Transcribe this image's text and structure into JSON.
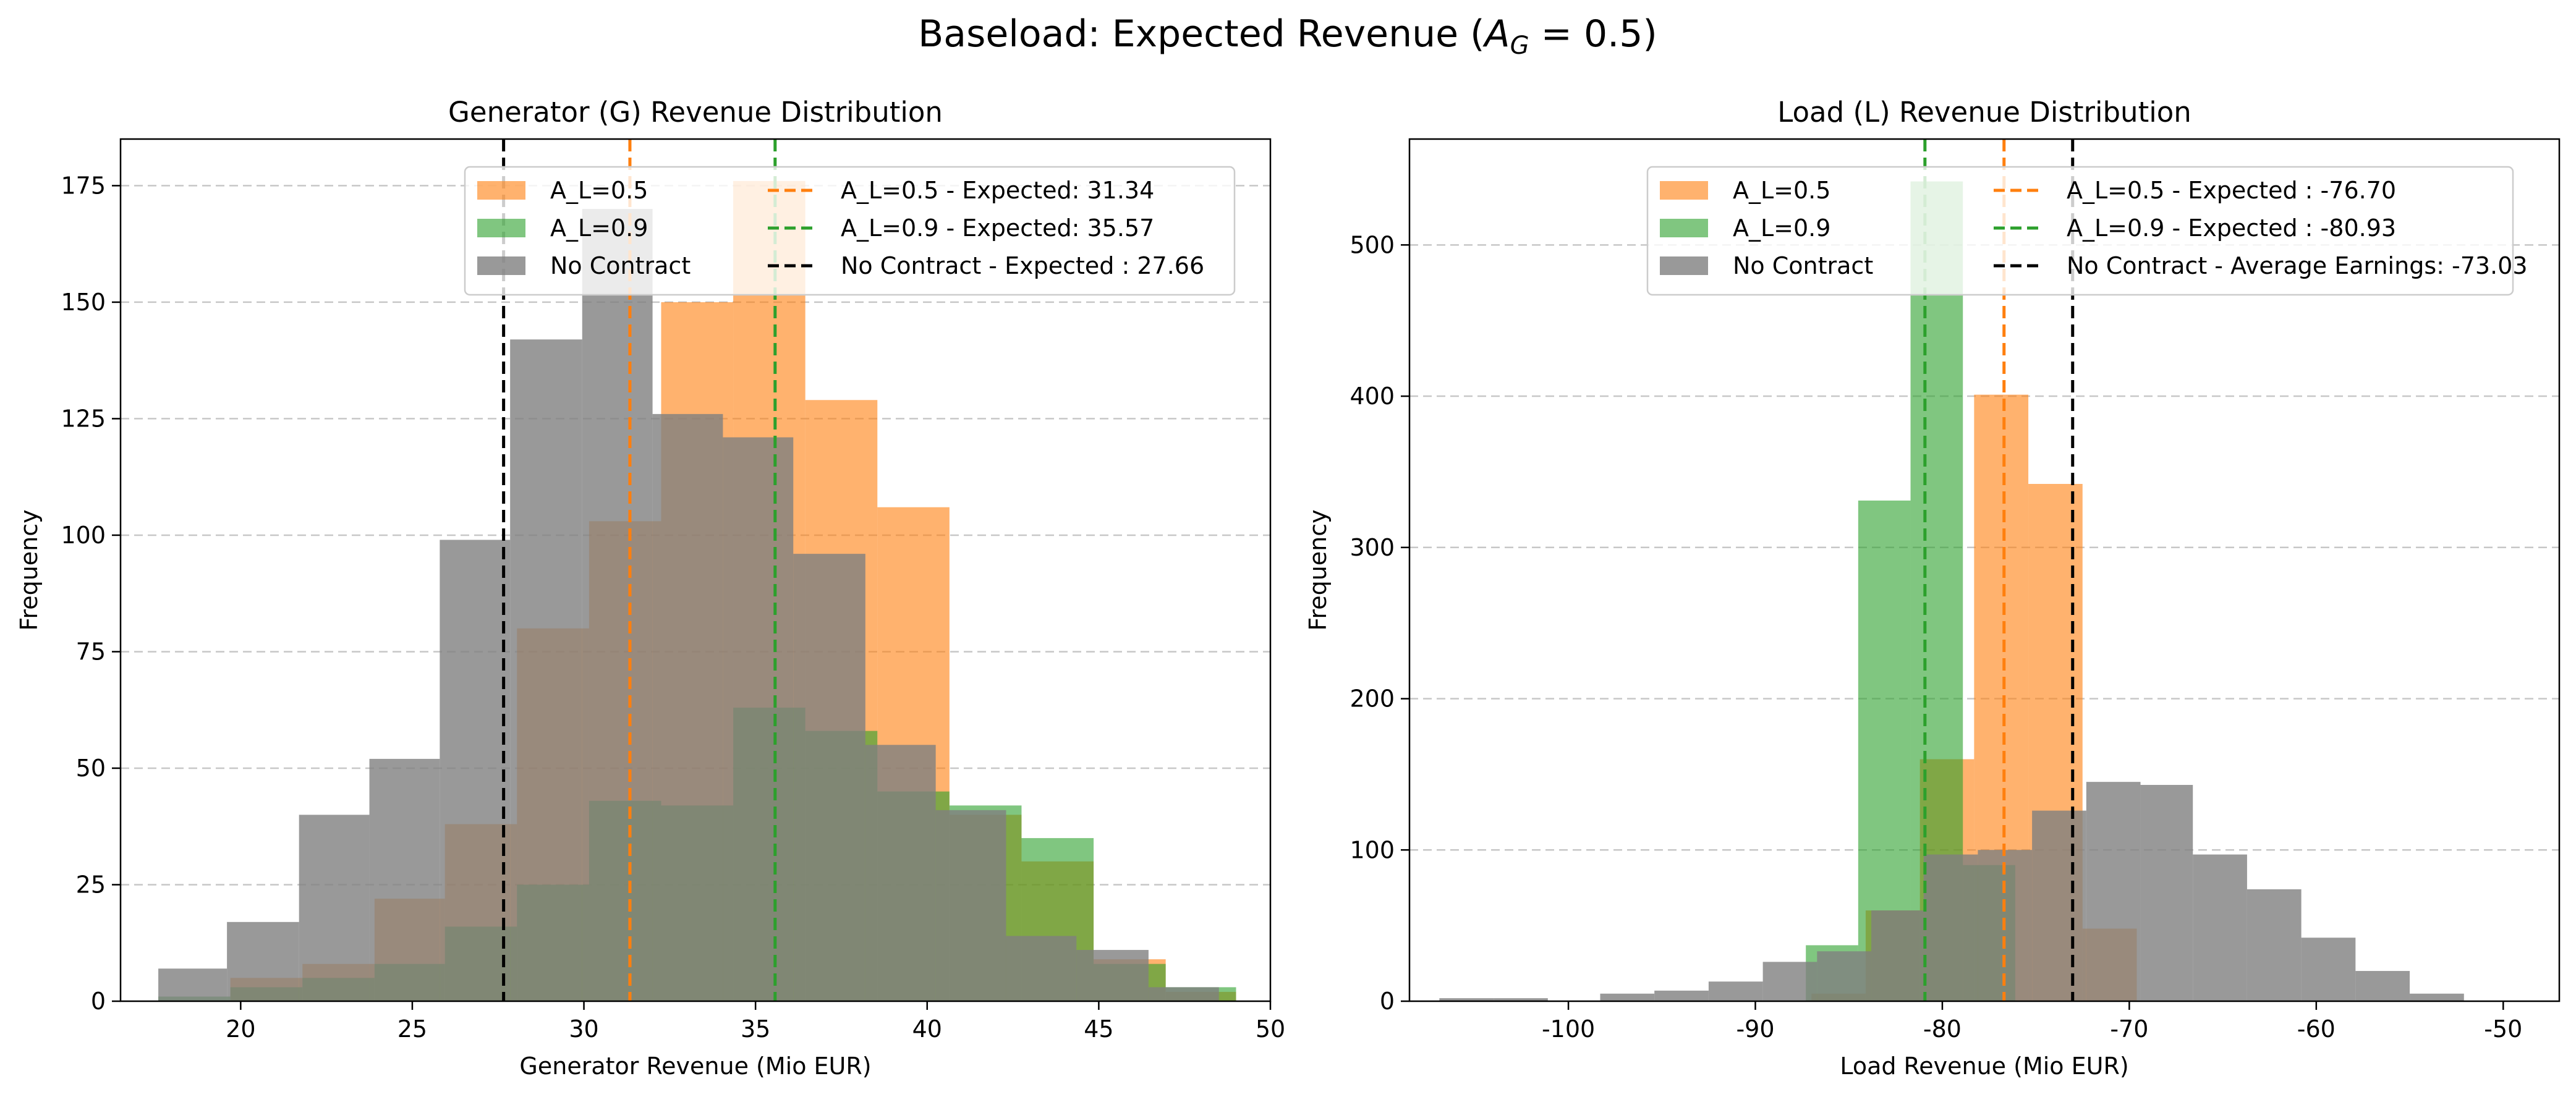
{
  "figure": {
    "title_prefix": "Baseload: Expected Revenue (",
    "title_var": "A",
    "title_sub": "G",
    "title_suffix": " = 0.5)"
  },
  "chart_data": [
    {
      "type": "histogram",
      "title": "Generator (G) Revenue Distribution",
      "xlabel": "Generator Revenue (Mio EUR)",
      "ylabel": "Frequency",
      "xlim": [
        16.5,
        50
      ],
      "ylim": [
        0,
        185
      ],
      "xticks": [
        20,
        25,
        30,
        35,
        40,
        45,
        50
      ],
      "yticks": [
        0,
        25,
        50,
        75,
        100,
        125,
        150,
        175
      ],
      "grid": "y-dashed",
      "legend_position": "top-right",
      "legend_columns": 2,
      "series": [
        {
          "name": "A_L=0.5",
          "color": "#ff7f0e",
          "opacity": 0.6,
          "bins": [
            [
              17.6,
              19.7,
              0
            ],
            [
              19.7,
              21.8,
              5
            ],
            [
              21.8,
              23.9,
              8
            ],
            [
              23.9,
              25.95,
              22
            ],
            [
              25.95,
              28.05,
              38
            ],
            [
              28.05,
              30.15,
              80
            ],
            [
              30.15,
              32.25,
              103
            ],
            [
              32.25,
              34.35,
              150
            ],
            [
              34.35,
              36.45,
              176
            ],
            [
              36.45,
              38.55,
              129
            ],
            [
              38.55,
              40.65,
              106
            ],
            [
              40.65,
              42.75,
              40
            ],
            [
              42.75,
              44.85,
              30
            ],
            [
              44.85,
              46.95,
              9
            ],
            [
              46.95,
              49.0,
              2
            ]
          ]
        },
        {
          "name": "A_L=0.9",
          "color": "#2ca02c",
          "opacity": 0.6,
          "bins": [
            [
              17.6,
              19.7,
              1
            ],
            [
              19.7,
              21.8,
              3
            ],
            [
              21.8,
              23.9,
              5
            ],
            [
              23.9,
              25.95,
              8
            ],
            [
              25.95,
              28.05,
              16
            ],
            [
              28.05,
              30.15,
              25
            ],
            [
              30.15,
              32.25,
              43
            ],
            [
              32.25,
              34.35,
              42
            ],
            [
              34.35,
              36.45,
              63
            ],
            [
              36.45,
              38.55,
              58
            ],
            [
              38.55,
              40.65,
              45
            ],
            [
              40.65,
              42.75,
              42
            ],
            [
              42.75,
              44.85,
              35
            ],
            [
              44.85,
              46.95,
              8
            ],
            [
              46.95,
              49.0,
              3
            ]
          ]
        },
        {
          "name": "No Contract",
          "color": "#808080",
          "opacity": 0.8,
          "bins": [
            [
              17.6,
              19.6,
              7
            ],
            [
              19.6,
              21.7,
              17
            ],
            [
              21.7,
              23.75,
              40
            ],
            [
              23.75,
              25.8,
              52
            ],
            [
              25.8,
              27.85,
              99
            ],
            [
              27.85,
              29.95,
              142
            ],
            [
              29.95,
              32.0,
              170
            ],
            [
              32.0,
              34.05,
              126
            ],
            [
              34.05,
              36.1,
              121
            ],
            [
              36.1,
              38.2,
              96
            ],
            [
              38.2,
              40.25,
              55
            ],
            [
              40.25,
              42.3,
              41
            ],
            [
              42.3,
              44.35,
              14
            ],
            [
              44.35,
              46.45,
              11
            ],
            [
              46.45,
              48.5,
              3
            ]
          ]
        }
      ],
      "expected_lines": [
        {
          "label": "A_L=0.5 - Expected: 31.34",
          "x": 31.34,
          "color": "#ff7f0e"
        },
        {
          "label": "A_L=0.9 - Expected: 35.57",
          "x": 35.57,
          "color": "#2ca02c"
        },
        {
          "label": "No Contract - Expected : 27.66",
          "x": 27.66,
          "color": "#000000"
        }
      ]
    },
    {
      "type": "histogram",
      "title": "Load (L) Revenue Distribution",
      "xlabel": "Load Revenue (Mio EUR)",
      "ylabel": "Frequency",
      "xlim": [
        -108.5,
        -47
      ],
      "ylim": [
        0,
        570
      ],
      "xticks": [
        -100,
        -90,
        -80,
        -70,
        -60,
        -50
      ],
      "yticks": [
        0,
        100,
        200,
        300,
        400,
        500
      ],
      "grid": "y-dashed",
      "legend_position": "top-right",
      "legend_columns": 2,
      "series": [
        {
          "name": "A_L=0.5",
          "color": "#ff7f0e",
          "opacity": 0.6,
          "bins": [
            [
              -87.0,
              -84.1,
              5
            ],
            [
              -84.1,
              -81.2,
              60
            ],
            [
              -81.2,
              -78.3,
              160
            ],
            [
              -78.3,
              -75.4,
              401
            ],
            [
              -75.4,
              -72.5,
              342
            ],
            [
              -72.5,
              -69.6,
              48
            ]
          ]
        },
        {
          "name": "A_L=0.9",
          "color": "#2ca02c",
          "opacity": 0.6,
          "bins": [
            [
              -87.3,
              -84.5,
              37
            ],
            [
              -84.5,
              -81.7,
              331
            ],
            [
              -81.7,
              -78.9,
              542
            ],
            [
              -78.9,
              -76.1,
              90
            ],
            [
              -76.1,
              -73.3,
              0
            ]
          ]
        },
        {
          "name": "No Contract",
          "color": "#808080",
          "opacity": 0.8,
          "bins": [
            [
              -106.9,
              -104.0,
              2
            ],
            [
              -104.0,
              -101.1,
              2
            ],
            [
              -101.1,
              -98.3,
              0
            ],
            [
              -98.3,
              -95.4,
              5
            ],
            [
              -95.4,
              -92.5,
              7
            ],
            [
              -92.5,
              -89.6,
              13
            ],
            [
              -89.6,
              -86.7,
              26
            ],
            [
              -86.7,
              -83.8,
              33
            ],
            [
              -83.8,
              -81.0,
              60
            ],
            [
              -81.0,
              -78.1,
              97
            ],
            [
              -78.1,
              -75.2,
              100
            ],
            [
              -75.2,
              -72.3,
              126
            ],
            [
              -72.3,
              -69.4,
              145
            ],
            [
              -69.4,
              -66.6,
              143
            ],
            [
              -66.6,
              -63.7,
              97
            ],
            [
              -63.7,
              -60.8,
              74
            ],
            [
              -60.8,
              -57.9,
              42
            ],
            [
              -57.9,
              -55.0,
              20
            ],
            [
              -55.0,
              -52.1,
              5
            ]
          ]
        }
      ],
      "expected_lines": [
        {
          "label": "A_L=0.5 - Expected   : -76.70",
          "x": -76.7,
          "color": "#ff7f0e"
        },
        {
          "label": "A_L=0.9 - Expected   : -80.93",
          "x": -80.93,
          "color": "#2ca02c"
        },
        {
          "label": "No Contract - Average Earnings: -73.03",
          "x": -73.03,
          "color": "#000000"
        }
      ]
    }
  ]
}
